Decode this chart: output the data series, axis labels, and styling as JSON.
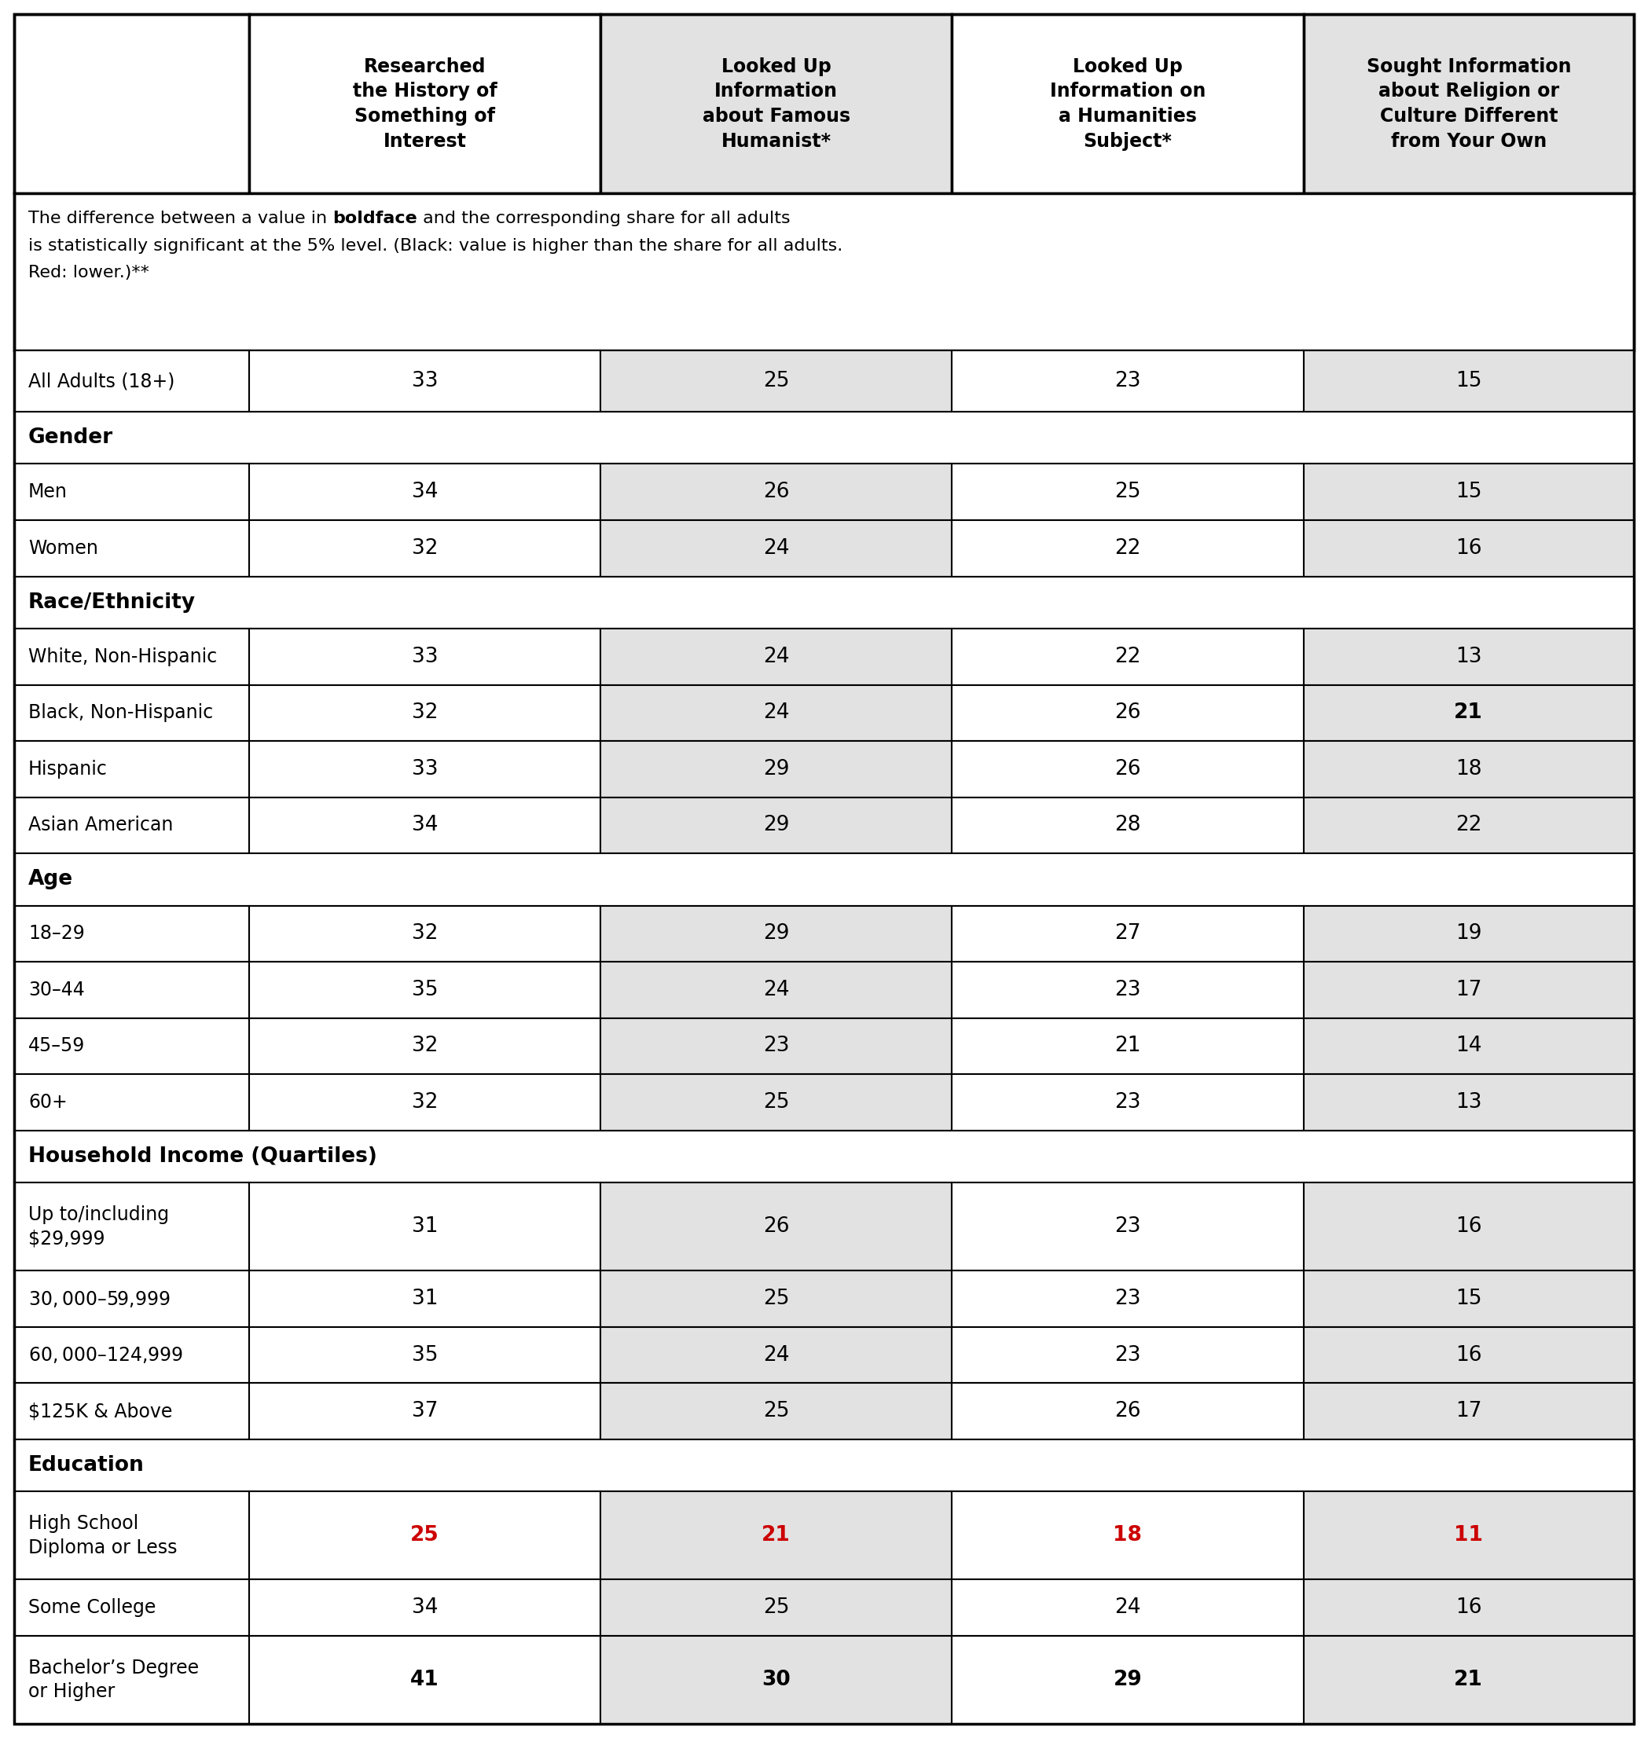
{
  "col_headers": [
    "Researched\nthe History of\nSomething of\nInterest",
    "Looked Up\nInformation\nabout Famous\nHumanist*",
    "Looked Up\nInformation on\na Humanities\nSubject*",
    "Sought Information\nabout Religion or\nCulture Different\nfrom Your Own"
  ],
  "note_line1_before_bold": "The difference between a value in ",
  "note_line1_bold": "boldface",
  "note_line1_after_bold": " and the corresponding share for all adults",
  "note_line2": "is statistically significant at the 5% level. (Black: value is higher than the share for all adults.",
  "note_line3": "Red: lower.)**",
  "rows": [
    {
      "label": "All Adults (18+)",
      "values": [
        "33",
        "25",
        "23",
        "15"
      ],
      "style": [
        "normal",
        "normal",
        "normal",
        "normal"
      ],
      "section_header": false
    },
    {
      "label": "Gender",
      "values": [
        "",
        "",
        "",
        ""
      ],
      "style": [
        "",
        "",
        "",
        ""
      ],
      "section_header": true
    },
    {
      "label": "Men",
      "values": [
        "34",
        "26",
        "25",
        "15"
      ],
      "style": [
        "normal",
        "normal",
        "normal",
        "normal"
      ],
      "section_header": false
    },
    {
      "label": "Women",
      "values": [
        "32",
        "24",
        "22",
        "16"
      ],
      "style": [
        "normal",
        "normal",
        "normal",
        "normal"
      ],
      "section_header": false
    },
    {
      "label": "Race/Ethnicity",
      "values": [
        "",
        "",
        "",
        ""
      ],
      "style": [
        "",
        "",
        "",
        ""
      ],
      "section_header": true
    },
    {
      "label": "White, Non-Hispanic",
      "values": [
        "33",
        "24",
        "22",
        "13"
      ],
      "style": [
        "normal",
        "normal",
        "normal",
        "normal"
      ],
      "section_header": false
    },
    {
      "label": "Black, Non-Hispanic",
      "values": [
        "32",
        "24",
        "26",
        "21"
      ],
      "style": [
        "normal",
        "normal",
        "normal",
        "bold_black"
      ],
      "section_header": false
    },
    {
      "label": "Hispanic",
      "values": [
        "33",
        "29",
        "26",
        "18"
      ],
      "style": [
        "normal",
        "normal",
        "normal",
        "normal"
      ],
      "section_header": false
    },
    {
      "label": "Asian American",
      "values": [
        "34",
        "29",
        "28",
        "22"
      ],
      "style": [
        "normal",
        "normal",
        "normal",
        "normal"
      ],
      "section_header": false
    },
    {
      "label": "Age",
      "values": [
        "",
        "",
        "",
        ""
      ],
      "style": [
        "",
        "",
        "",
        ""
      ],
      "section_header": true
    },
    {
      "label": "18–29",
      "values": [
        "32",
        "29",
        "27",
        "19"
      ],
      "style": [
        "normal",
        "normal",
        "normal",
        "normal"
      ],
      "section_header": false
    },
    {
      "label": "30–44",
      "values": [
        "35",
        "24",
        "23",
        "17"
      ],
      "style": [
        "normal",
        "normal",
        "normal",
        "normal"
      ],
      "section_header": false
    },
    {
      "label": "45–59",
      "values": [
        "32",
        "23",
        "21",
        "14"
      ],
      "style": [
        "normal",
        "normal",
        "normal",
        "normal"
      ],
      "section_header": false
    },
    {
      "label": "60+",
      "values": [
        "32",
        "25",
        "23",
        "13"
      ],
      "style": [
        "normal",
        "normal",
        "normal",
        "normal"
      ],
      "section_header": false
    },
    {
      "label": "Household Income (Quartiles)",
      "values": [
        "",
        "",
        "",
        ""
      ],
      "style": [
        "",
        "",
        "",
        ""
      ],
      "section_header": true
    },
    {
      "label": "Up to/including\n$29,999",
      "values": [
        "31",
        "26",
        "23",
        "16"
      ],
      "style": [
        "normal",
        "normal",
        "normal",
        "normal"
      ],
      "section_header": false
    },
    {
      "label": "$30,000–$59,999",
      "values": [
        "31",
        "25",
        "23",
        "15"
      ],
      "style": [
        "normal",
        "normal",
        "normal",
        "normal"
      ],
      "section_header": false
    },
    {
      "label": "$60,000–$124,999",
      "values": [
        "35",
        "24",
        "23",
        "16"
      ],
      "style": [
        "normal",
        "normal",
        "normal",
        "normal"
      ],
      "section_header": false
    },
    {
      "label": "$125K & Above",
      "values": [
        "37",
        "25",
        "26",
        "17"
      ],
      "style": [
        "normal",
        "normal",
        "normal",
        "normal"
      ],
      "section_header": false
    },
    {
      "label": "Education",
      "values": [
        "",
        "",
        "",
        ""
      ],
      "style": [
        "",
        "",
        "",
        ""
      ],
      "section_header": true
    },
    {
      "label": "High School\nDiploma or Less",
      "values": [
        "25",
        "21",
        "18",
        "11"
      ],
      "style": [
        "bold_red",
        "bold_red",
        "bold_red",
        "bold_red"
      ],
      "section_header": false
    },
    {
      "label": "Some College",
      "values": [
        "34",
        "25",
        "24",
        "16"
      ],
      "style": [
        "normal",
        "normal",
        "normal",
        "normal"
      ],
      "section_header": false
    },
    {
      "label": "Bachelor’s Degree\nor Higher",
      "values": [
        "41",
        "30",
        "29",
        "21"
      ],
      "style": [
        "bold_black",
        "bold_black",
        "bold_black",
        "bold_black"
      ],
      "section_header": false
    }
  ],
  "col_bg_colors": [
    "#ffffff",
    "#e2e2e2",
    "#ffffff",
    "#e2e2e2"
  ],
  "text_color_normal": "#000000",
  "text_color_red": "#cc0000",
  "text_color_bold_black": "#000000",
  "border_color": "#000000"
}
